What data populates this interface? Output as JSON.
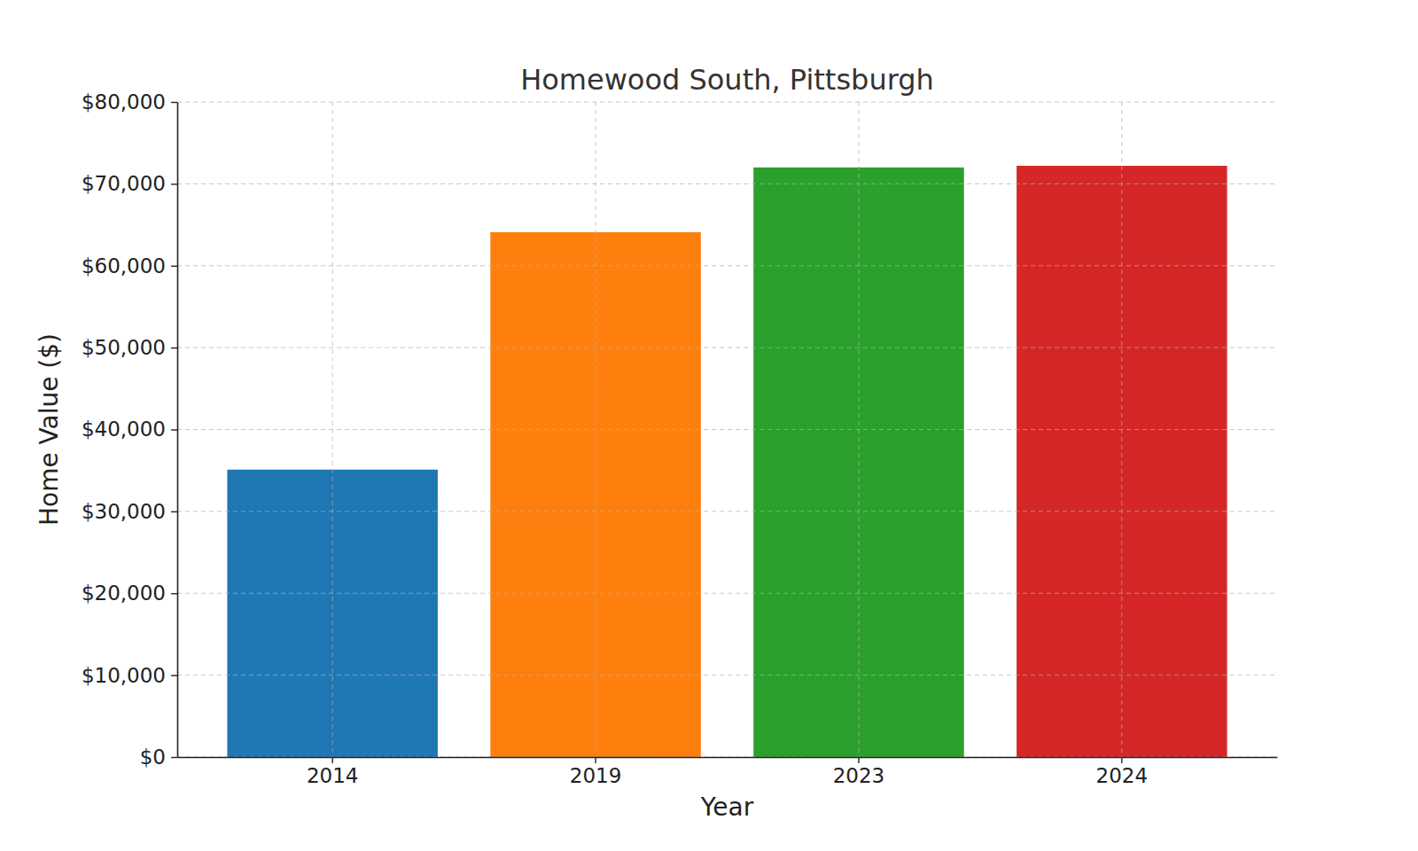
{
  "chart_data": {
    "type": "bar",
    "title": "Homewood South, Pittsburgh",
    "x_label": "Year",
    "y_label": "Home Value ($)",
    "categories": [
      "2014",
      "2019",
      "2023",
      "2024"
    ],
    "values": [
      35100,
      64100,
      72000,
      72200
    ],
    "colors": [
      "#1f77b4",
      "#ff7f0e",
      "#2ca02c",
      "#d62728"
    ],
    "ylim": [
      0,
      80000
    ],
    "yticks": [
      {
        "value": 0,
        "label": "$0"
      },
      {
        "value": 10000,
        "label": "$10,000"
      },
      {
        "value": 20000,
        "label": "$20,000"
      },
      {
        "value": 30000,
        "label": "$30,000"
      },
      {
        "value": 40000,
        "label": "$40,000"
      },
      {
        "value": 50000,
        "label": "$50,000"
      },
      {
        "value": 60000,
        "label": "$60,000"
      },
      {
        "value": 70000,
        "label": "$70,000"
      },
      {
        "value": 80000,
        "label": "$80,000"
      }
    ],
    "grid": true
  }
}
